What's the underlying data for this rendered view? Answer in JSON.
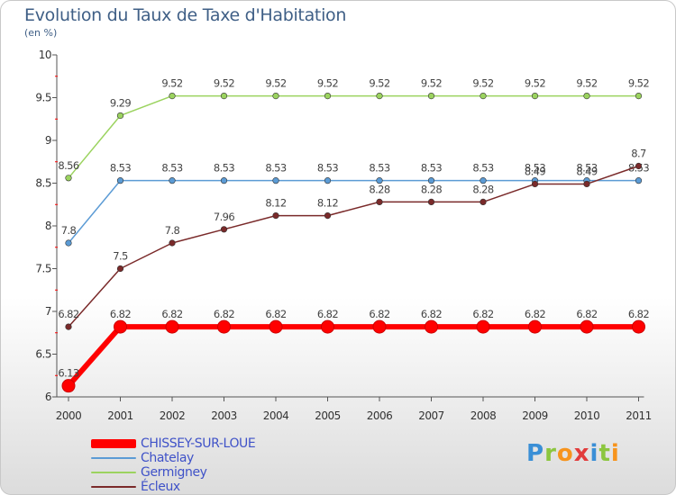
{
  "header": {
    "title": "Evolution du Taux de Taxe d'Habitation",
    "subtitle": "(en %)"
  },
  "logo": {
    "text": "Proxiti",
    "letters": [
      {
        "char": "P",
        "color": "#3a8fd6"
      },
      {
        "char": "r",
        "color": "#8cc63f"
      },
      {
        "char": "o",
        "color": "#f7941d"
      },
      {
        "char": "x",
        "color": "#e23c3c"
      },
      {
        "char": "i",
        "color": "#3a8fd6"
      },
      {
        "char": "t",
        "color": "#8cc63f"
      },
      {
        "char": "i",
        "color": "#f7941d"
      }
    ]
  },
  "chart_data": {
    "type": "line",
    "title": "Evolution du Taux de Taxe d'Habitation",
    "ylabel": "(en %)",
    "xlabel": "",
    "categories": [
      "2000",
      "2001",
      "2002",
      "2003",
      "2004",
      "2005",
      "2006",
      "2007",
      "2008",
      "2009",
      "2010",
      "2011"
    ],
    "ylim": [
      6,
      10
    ],
    "yticks": [
      "6",
      "6.5",
      "7",
      "7.5",
      "8",
      "8.5",
      "9",
      "9.5",
      "10"
    ],
    "series": [
      {
        "name": "CHISSEY-SUR-LOUE",
        "color": "#ff0000",
        "values": [
          6.13,
          6.82,
          6.82,
          6.82,
          6.82,
          6.82,
          6.82,
          6.82,
          6.82,
          6.82,
          6.82,
          6.82
        ],
        "labels": [
          "6.13",
          "6.82",
          "6.82",
          "6.82",
          "6.82",
          "6.82",
          "6.82",
          "6.82",
          "6.82",
          "6.82",
          "6.82",
          "6.82"
        ]
      },
      {
        "name": "Chatelay",
        "color": "#5b9bd5",
        "values": [
          7.8,
          8.53,
          8.53,
          8.53,
          8.53,
          8.53,
          8.53,
          8.53,
          8.53,
          8.53,
          8.53,
          8.53
        ],
        "labels": [
          "7.8",
          "8.53",
          "8.53",
          "8.53",
          "8.53",
          "8.53",
          "8.53",
          "8.53",
          "8.53",
          "8.53",
          "8.53",
          "8.53"
        ]
      },
      {
        "name": "Germigney",
        "color": "#9bd35f",
        "values": [
          8.56,
          9.29,
          9.52,
          9.52,
          9.52,
          9.52,
          9.52,
          9.52,
          9.52,
          9.52,
          9.52,
          9.52
        ],
        "labels": [
          "8.56",
          "9.29",
          "9.52",
          "9.52",
          "9.52",
          "9.52",
          "9.52",
          "9.52",
          "9.52",
          "9.52",
          "9.52",
          "9.52"
        ]
      },
      {
        "name": "Écleux",
        "color": "#7a2a2a",
        "values": [
          6.82,
          7.5,
          7.8,
          7.96,
          8.12,
          8.12,
          8.28,
          8.28,
          8.28,
          8.49,
          8.49,
          8.7
        ],
        "labels": [
          "6.82",
          "7.5",
          "7.8",
          "7.96",
          "8.12",
          "8.12",
          "8.28",
          "8.28",
          "8.28",
          "8.49",
          "8.49",
          "8.7"
        ]
      }
    ]
  }
}
